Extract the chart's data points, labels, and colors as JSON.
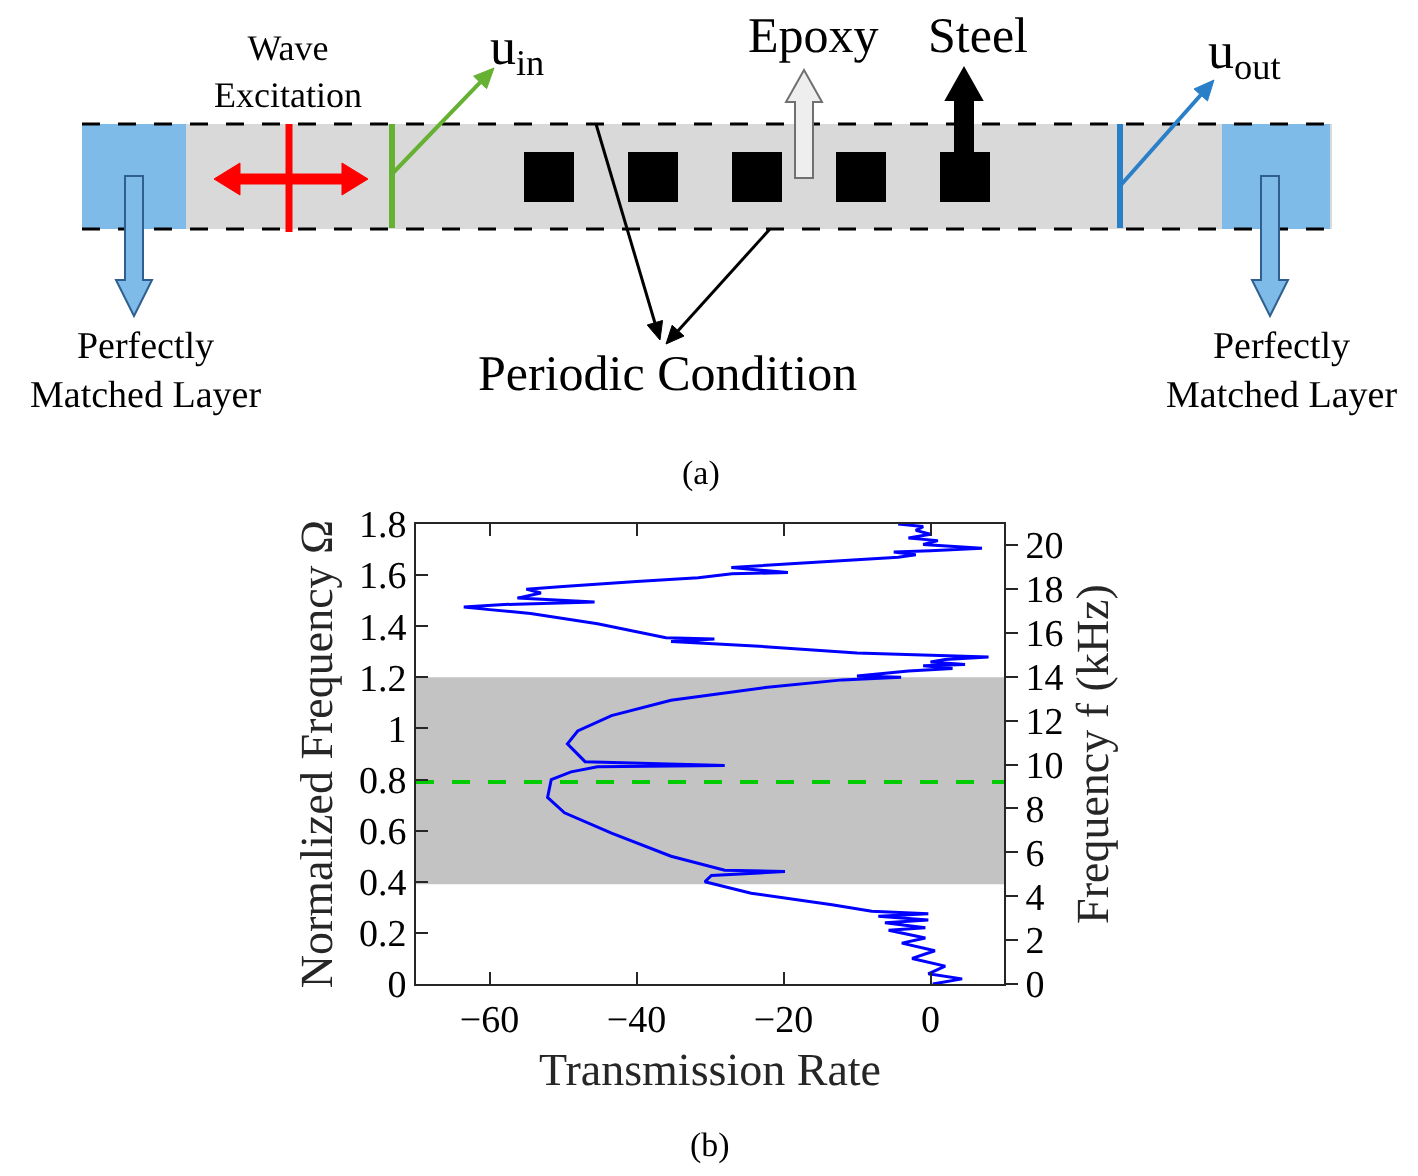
{
  "chart_data": [
    {
      "type": "other",
      "annotations": [
        "Wave Excitation",
        "u$_{in}$",
        "Epoxy",
        "Steel",
        "u$_{out}$",
        "Perfectly Matched Layer",
        "Periodic Condition",
        "Perfectly Matched Layer",
        "(a)"
      ]
    },
    {
      "type": "line",
      "xlabel": "Transmission Rate",
      "ylabel": "Normalized Frequency Ω",
      "y2label": "Frequency f (kHz)",
      "annotations": [
        "(b)"
      ],
      "series": [
        {
          "color": "#0000ff",
          "x": [
            0.3,
            4.3,
            -0.3,
            2.0,
            -2.5,
            0.6,
            -3.9,
            -0.7,
            -5.7,
            -0.7,
            -6.2,
            -0.3,
            -7.1,
            -0.3,
            -8.0,
            -13.4,
            -24.4,
            -30.7,
            -29.8,
            -19.8,
            -28,
            -35.3,
            -43.4,
            -49.8,
            -52.1,
            -51.6,
            -48.9,
            -45.3,
            -28,
            -47,
            -49.4,
            -48,
            -43.4,
            -35.3,
            -22.5,
            -12,
            -4,
            -10,
            -3,
            3,
            -1,
            4.7,
            0,
            2,
            7.9,
            -10,
            -22.5,
            -35.3,
            -29.4,
            -36,
            -45.3,
            -54.4,
            -60,
            -63.5,
            -58,
            -45.7,
            -56.2,
            -53,
            -55,
            -50,
            -40,
            -31.6,
            -27,
            -19.4,
            -27.1,
            -10,
            -4.4,
            -2,
            -5,
            0,
            7,
            -1,
            1,
            -3,
            0,
            -2,
            -1,
            -4.4
          ],
          "values": [
            0.0,
            0.02,
            0.04,
            0.07,
            0.1,
            0.13,
            0.16,
            0.18,
            0.21,
            0.22,
            0.24,
            0.25,
            0.265,
            0.275,
            0.285,
            0.31,
            0.355,
            0.4,
            0.425,
            0.44,
            0.445,
            0.5,
            0.59,
            0.67,
            0.73,
            0.8,
            0.83,
            0.85,
            0.855,
            0.87,
            0.94,
            0.99,
            1.05,
            1.11,
            1.16,
            1.19,
            1.2,
            1.205,
            1.225,
            1.235,
            1.245,
            1.25,
            1.26,
            1.27,
            1.28,
            1.295,
            1.32,
            1.34,
            1.35,
            1.355,
            1.41,
            1.45,
            1.465,
            1.475,
            1.485,
            1.495,
            1.51,
            1.53,
            1.545,
            1.555,
            1.575,
            1.59,
            1.605,
            1.61,
            1.63,
            1.66,
            1.67,
            1.68,
            1.69,
            1.695,
            1.705,
            1.72,
            1.735,
            1.745,
            1.76,
            1.775,
            1.79,
            1.8
          ]
        }
      ],
      "xlim": [
        -70,
        10
      ],
      "xticks": [
        -60,
        -40,
        -20,
        0
      ],
      "ylim": [
        0,
        1.8
      ],
      "yticks": [
        0,
        0.2,
        0.4,
        0.6,
        0.8,
        1,
        1.2,
        1.4,
        1.6,
        1.8
      ],
      "y2lim": [
        0,
        20.96
      ],
      "y2ticks": [
        0,
        2,
        4,
        6,
        8,
        10,
        12,
        14,
        16,
        18,
        20
      ],
      "bands": [
        {
          "axis": "y",
          "from": 0.39,
          "to": 1.2,
          "color": "#c3c3c3"
        }
      ],
      "ref_lines": [
        {
          "axis": "y",
          "value": 0.79,
          "color": "#00cc00",
          "line_style": "dashed"
        }
      ]
    }
  ]
}
